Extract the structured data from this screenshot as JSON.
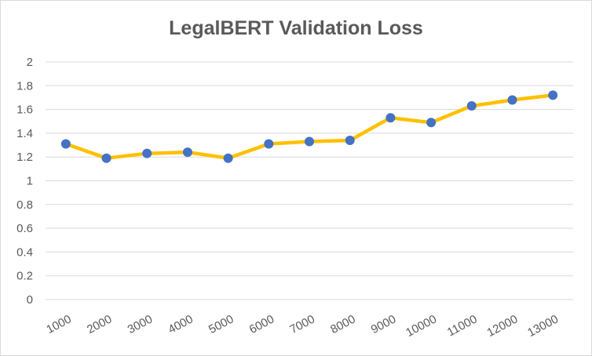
{
  "chart_data": {
    "type": "line",
    "title": "LegalBERT Validation Loss",
    "xlabel": "",
    "ylabel": "",
    "categories": [
      "1000",
      "2000",
      "3000",
      "4000",
      "5000",
      "6000",
      "7000",
      "8000",
      "9000",
      "10000",
      "11000",
      "12000",
      "13000"
    ],
    "series": [
      {
        "values": [
          1.31,
          1.19,
          1.23,
          1.24,
          1.19,
          1.31,
          1.33,
          1.34,
          1.53,
          1.49,
          1.63,
          1.68,
          1.72
        ]
      }
    ],
    "ylim": [
      0,
      2
    ],
    "yticks": [
      "0",
      "0.2",
      "0.4",
      "0.6",
      "0.8",
      "1",
      "1.2",
      "1.4",
      "1.6",
      "1.8",
      "2"
    ],
    "grid": "horizontal",
    "legend": "none",
    "colors": {
      "line": "#FFC000",
      "marker": "#4472C4",
      "grid": "#D9D9D9",
      "text": "#595959"
    }
  }
}
